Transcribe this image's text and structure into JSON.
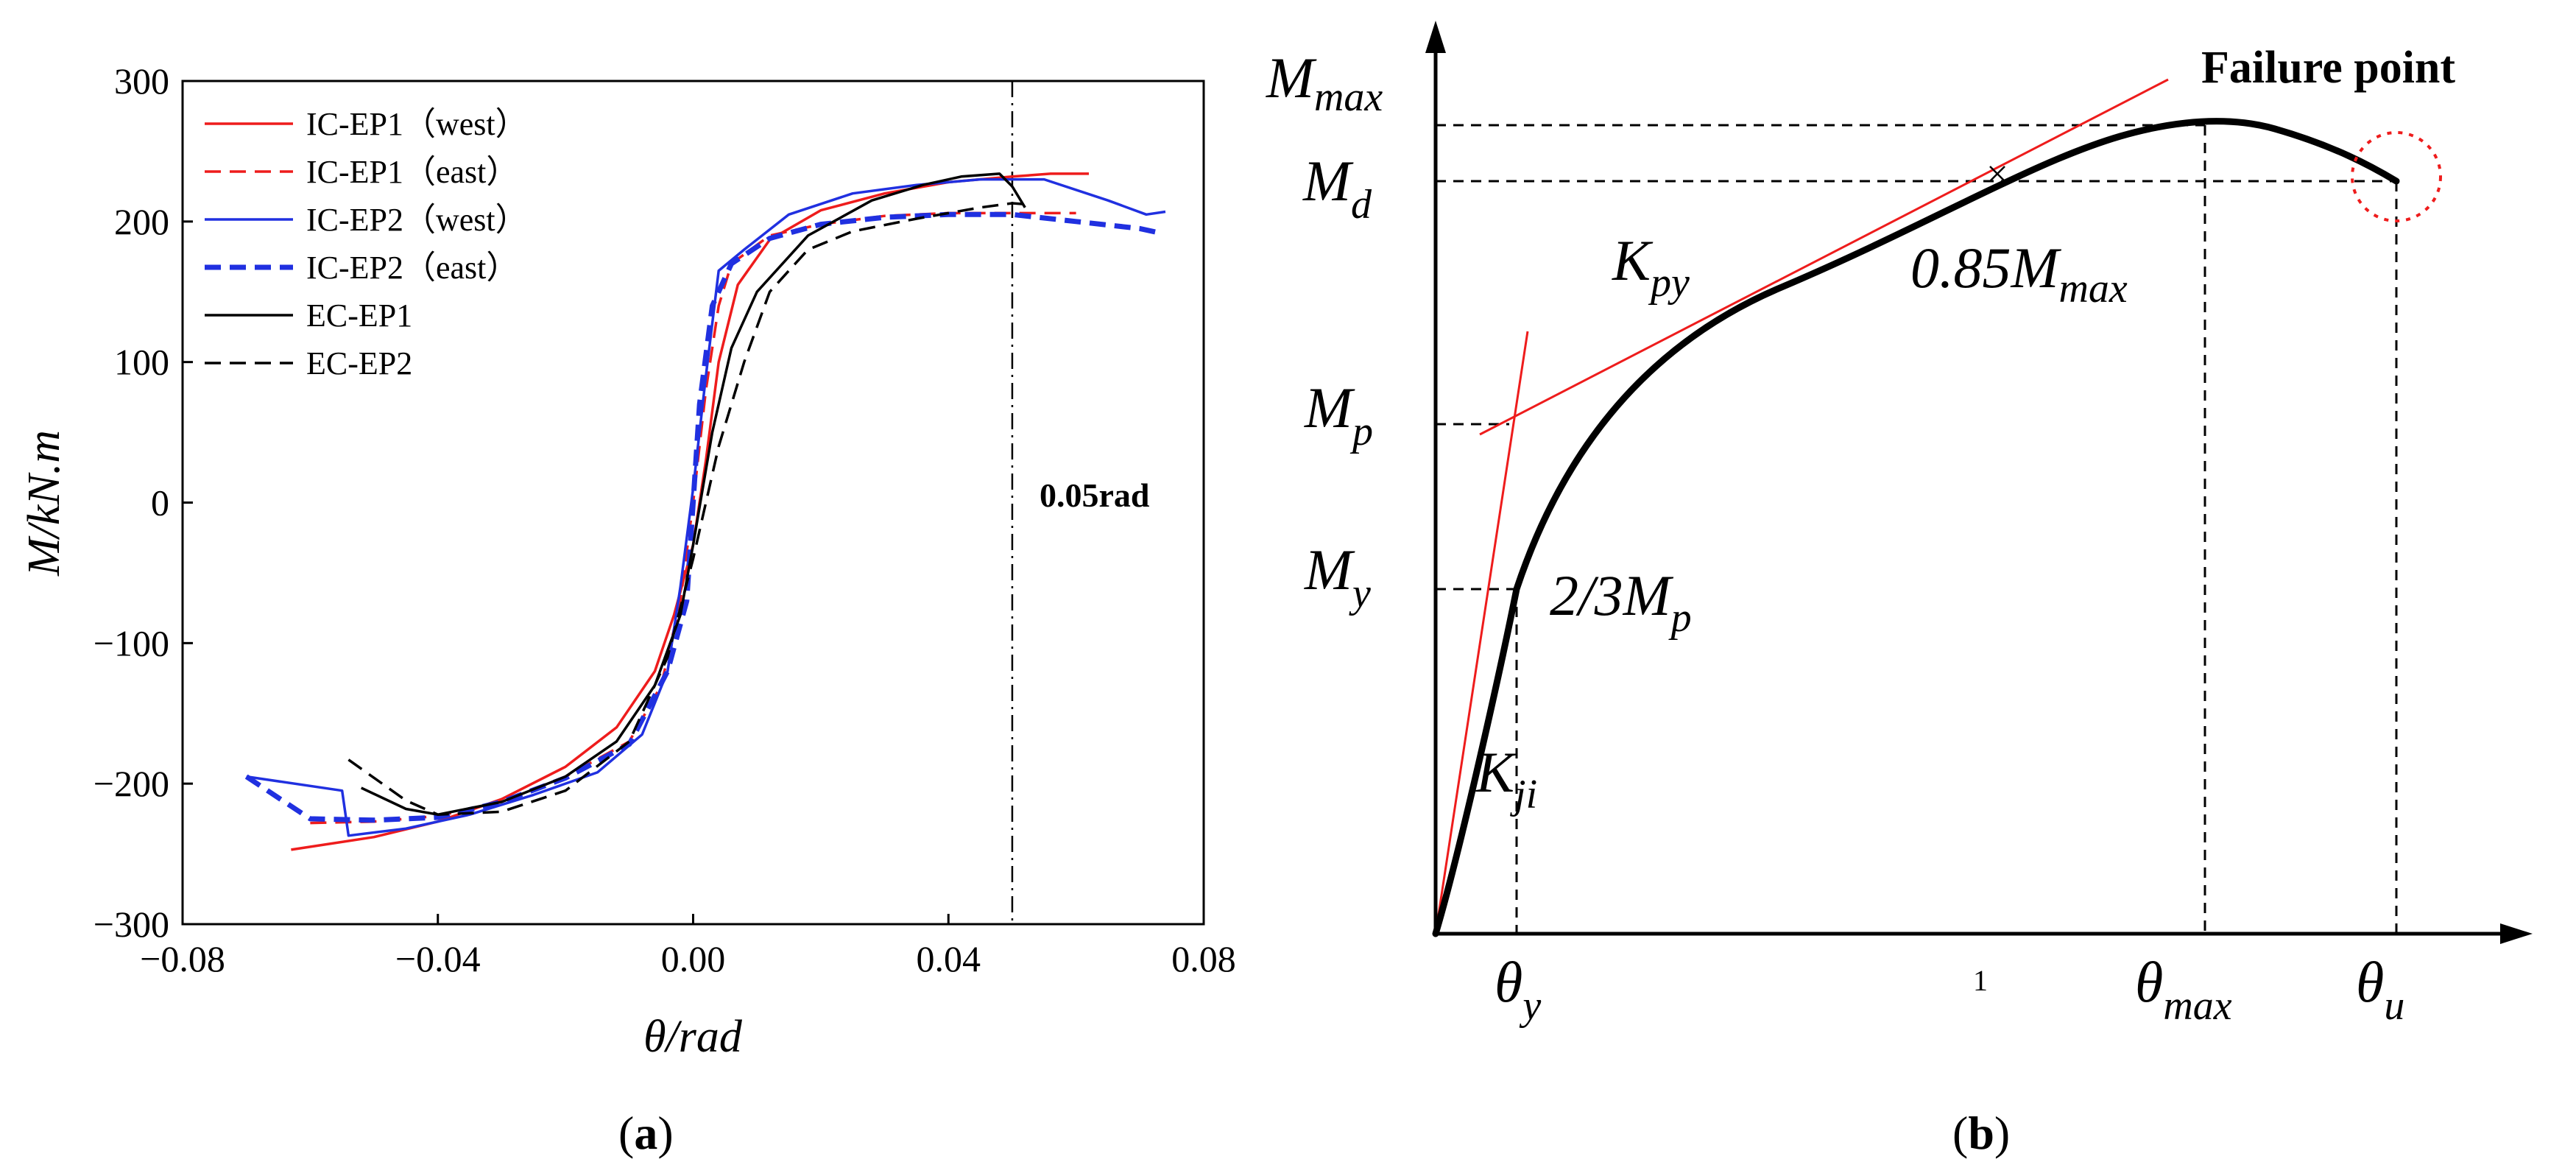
{
  "panel_a": {
    "caption": "(a)",
    "caption_letter": "a",
    "annotation": "0.05rad"
  },
  "panel_b": {
    "caption": "(b)",
    "caption_letter": "b",
    "failure_label": "Failure point",
    "y_labels": [
      {
        "main": "M",
        "sub": "max"
      },
      {
        "main": "M",
        "sub": "d"
      },
      {
        "main": "M",
        "sub": "p"
      },
      {
        "main": "M",
        "sub": "y"
      }
    ],
    "x_labels": [
      {
        "main": "θ",
        "sub": "y"
      },
      {
        "main": "θ",
        "sub": "max"
      },
      {
        "main": "θ",
        "sub": "u"
      }
    ],
    "x_extra_tick": "1",
    "k_py": {
      "main": "K",
      "sub": "py"
    },
    "k_ji": {
      "main": "K",
      "sub": "ji"
    },
    "point_085": {
      "prefix": "0.85",
      "main": "M",
      "sub": "max"
    },
    "point_23": {
      "prefix": "2/3",
      "main": "M",
      "sub": "p"
    },
    "colors": {
      "curve": "#000000",
      "tangent": "#ee1c1c",
      "failure_circle": "#ee1c1c"
    }
  },
  "chart_data": [
    {
      "type": "line",
      "xlabel": "θ/rad",
      "ylabel": "M/kN.m",
      "xlim": [
        -0.08,
        0.08
      ],
      "ylim": [
        -300,
        300
      ],
      "xticks": [
        -0.08,
        -0.04,
        0.0,
        0.04,
        0.08
      ],
      "xtick_labels": [
        "−0.08",
        "−0.04",
        "0.00",
        "0.04",
        "0.08"
      ],
      "yticks": [
        -300,
        -200,
        -100,
        0,
        100,
        200,
        300
      ],
      "ytick_labels": [
        "−300",
        "−200",
        "−100",
        "0",
        "100",
        "200",
        "300"
      ],
      "legend_position": "top-left",
      "reference_line": {
        "x": 0.05,
        "label": "0.05rad"
      },
      "series": [
        {
          "name": "IC-EP1（west）",
          "color": "#ee1c1c",
          "dash": "solid",
          "x": [
            -0.063,
            -0.05,
            -0.04,
            -0.03,
            -0.02,
            -0.012,
            -0.006,
            -0.003,
            0.0,
            0.002,
            0.004,
            0.007,
            0.012,
            0.02,
            0.03,
            0.04,
            0.05,
            0.056,
            0.062
          ],
          "y": [
            -247,
            -238,
            -227,
            -211,
            -188,
            -160,
            -120,
            -80,
            -30,
            30,
            100,
            155,
            187,
            208,
            220,
            228,
            232,
            234,
            234
          ]
        },
        {
          "name": "IC-EP1（east）",
          "color": "#ee1c1c",
          "dash": "dash",
          "x": [
            -0.06,
            -0.05,
            -0.04,
            -0.03,
            -0.02,
            -0.01,
            -0.005,
            -0.002,
            0.0,
            0.002,
            0.004,
            0.006,
            0.012,
            0.02,
            0.03,
            0.04,
            0.05,
            0.056,
            0.06
          ],
          "y": [
            -228,
            -227,
            -223,
            -213,
            -195,
            -170,
            -130,
            -70,
            0,
            80,
            140,
            170,
            190,
            198,
            204,
            206,
            206,
            206,
            206
          ]
        },
        {
          "name": "IC-EP2（west）",
          "color": "#2030e0",
          "dash": "solid",
          "x": [
            -0.07,
            -0.055,
            -0.054,
            -0.045,
            -0.035,
            -0.025,
            -0.015,
            -0.008,
            -0.004,
            -0.002,
            0.0,
            0.002,
            0.004,
            0.008,
            0.015,
            0.025,
            0.035,
            0.045,
            0.055,
            0.065,
            0.071,
            0.074
          ],
          "y": [
            -195,
            -205,
            -237,
            -232,
            -222,
            -208,
            -192,
            -165,
            -120,
            -60,
            10,
            90,
            165,
            180,
            205,
            220,
            226,
            230,
            230,
            215,
            205,
            207
          ]
        },
        {
          "name": "IC-EP2（east）",
          "color": "#2030e0",
          "dash": "dash",
          "x": [
            -0.07,
            -0.065,
            -0.06,
            -0.05,
            -0.04,
            -0.03,
            -0.02,
            -0.01,
            -0.004,
            -0.001,
            0.0,
            0.001,
            0.003,
            0.006,
            0.012,
            0.02,
            0.03,
            0.04,
            0.05,
            0.06,
            0.07,
            0.073
          ],
          "y": [
            -195,
            -210,
            -225,
            -226,
            -224,
            -213,
            -196,
            -172,
            -120,
            -70,
            0,
            70,
            140,
            170,
            188,
            198,
            203,
            205,
            205,
            200,
            195,
            192
          ]
        },
        {
          "name": "EC-EP1",
          "color": "#000000",
          "dash": "solid",
          "x": [
            -0.052,
            -0.045,
            -0.04,
            -0.03,
            -0.02,
            -0.012,
            -0.006,
            -0.002,
            0.0,
            0.003,
            0.006,
            0.01,
            0.018,
            0.028,
            0.036,
            0.042,
            0.048,
            0.05,
            0.052
          ],
          "y": [
            -203,
            -218,
            -222,
            -213,
            -195,
            -170,
            -130,
            -80,
            -30,
            50,
            110,
            150,
            190,
            215,
            226,
            232,
            234,
            225,
            210
          ]
        },
        {
          "name": "EC-EP2",
          "color": "#000000",
          "dash": "dash",
          "x": [
            -0.054,
            -0.045,
            -0.04,
            -0.03,
            -0.02,
            -0.01,
            -0.004,
            0.0,
            0.004,
            0.008,
            0.012,
            0.018,
            0.025,
            0.035,
            0.045,
            0.05,
            0.053
          ],
          "y": [
            -183,
            -212,
            -222,
            -220,
            -205,
            -170,
            -110,
            -40,
            40,
            100,
            150,
            180,
            193,
            202,
            210,
            213,
            212
          ]
        }
      ]
    },
    {
      "type": "line",
      "xlabel": "",
      "ylabel": "",
      "series": [
        {
          "name": "",
          "color": "#000000",
          "x": [
            0.0,
            0.02,
            0.04,
            0.08,
            0.12,
            0.18,
            0.26,
            0.36,
            0.46,
            0.56,
            0.66,
            0.72,
            0.78,
            0.84,
            0.9,
            0.96,
            1.0
          ],
          "y": [
            0.0,
            0.1,
            0.2,
            0.4,
            0.55,
            0.64,
            0.7,
            0.76,
            0.84,
            0.91,
            0.97,
            0.99,
            1.0,
            0.99,
            0.96,
            0.92,
            0.89
          ]
        }
      ]
    }
  ]
}
